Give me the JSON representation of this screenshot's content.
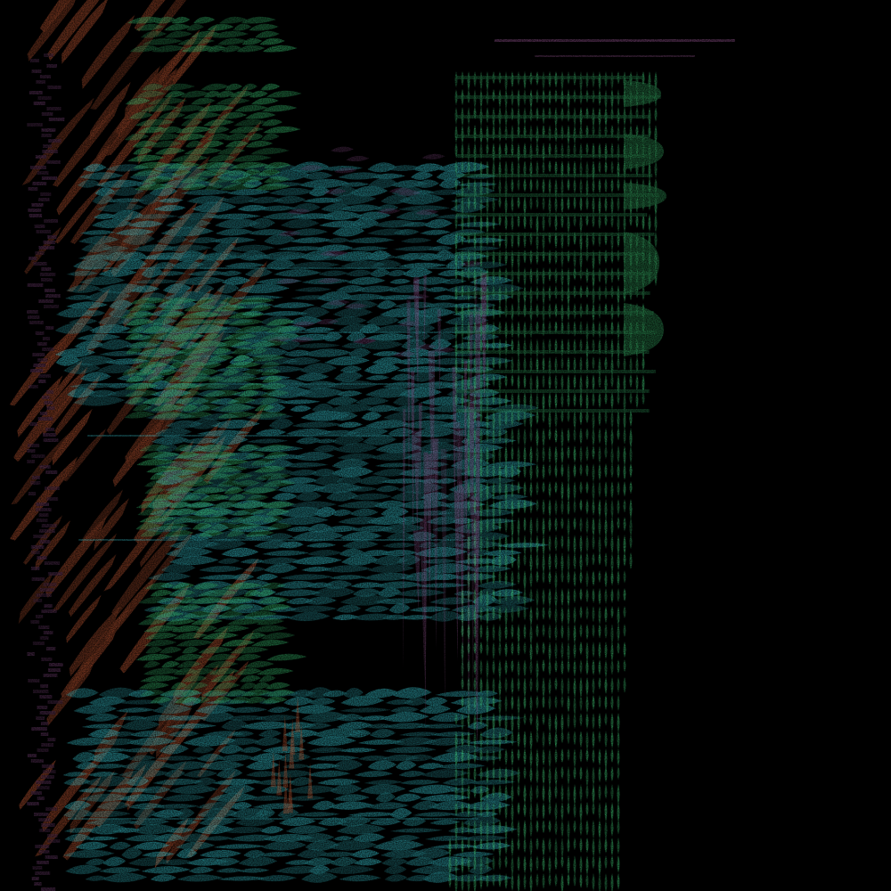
{
  "image": {
    "background_color": "#000000",
    "palette": {
      "rust": "#b4512f",
      "green": "#2fa35f",
      "green_bright": "#3cc070",
      "cyan": "#33b8c2",
      "purple": "#6a3a6a",
      "purple_bright": "#8a4e86"
    }
  }
}
